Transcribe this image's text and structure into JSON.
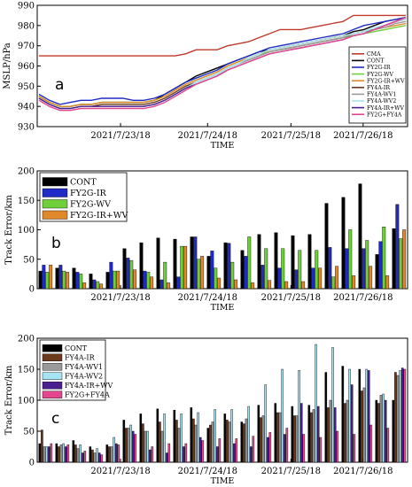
{
  "chart_data": [
    {
      "type": "line",
      "panel_label": "a",
      "title": "",
      "xlabel": "TIME",
      "ylabel": "MSLP/hPa",
      "ylim": [
        930,
        990
      ],
      "yticks": [
        930,
        940,
        950,
        960,
        970,
        980,
        990
      ],
      "xtick_labels": [
        "2021/7/23/18",
        "2021/7/24/18",
        "2021/7/25/18",
        "2021/7/26/18"
      ],
      "x": [
        0,
        1,
        2,
        3,
        4,
        5,
        6,
        7,
        8,
        9,
        10,
        11,
        12,
        13,
        14,
        15,
        16,
        17,
        18,
        19,
        20,
        21,
        22,
        23,
        24,
        25,
        26,
        27,
        28,
        29,
        30,
        31,
        32,
        33,
        34,
        35
      ],
      "legend_position": "right",
      "series": [
        {
          "name": "CMA",
          "color": "#c0392b",
          "values": [
            965,
            965,
            965,
            965,
            965,
            965,
            965,
            965,
            965,
            965,
            965,
            965,
            965,
            965,
            966,
            968,
            968,
            968,
            970,
            971,
            972,
            974,
            976,
            978,
            978,
            978,
            979,
            980,
            981,
            982,
            985,
            985,
            985,
            985,
            985,
            985
          ]
        },
        {
          "name": "CONT",
          "color": "#000000",
          "values": [
            945,
            942,
            940,
            940,
            941,
            941,
            942,
            942,
            942,
            942,
            942,
            943,
            946,
            949,
            952,
            955,
            957,
            959,
            961,
            963,
            965,
            967,
            968,
            969,
            970,
            971,
            972,
            973,
            974,
            975,
            977,
            978,
            980,
            982,
            983,
            984
          ]
        },
        {
          "name": "FY2G-IR",
          "color": "#1f2bc4",
          "values": [
            946,
            943,
            941,
            942,
            943,
            943,
            944,
            944,
            944,
            943,
            943,
            944,
            946,
            949,
            952,
            954,
            956,
            958,
            961,
            963,
            965,
            967,
            969,
            970,
            971,
            972,
            973,
            974,
            975,
            976,
            978,
            980,
            981,
            982,
            983,
            984
          ]
        },
        {
          "name": "FY2G-WV",
          "color": "#6fcf3a",
          "values": [
            945,
            942,
            940,
            940,
            941,
            941,
            942,
            942,
            942,
            942,
            942,
            943,
            945,
            948,
            951,
            953,
            955,
            957,
            960,
            962,
            964,
            966,
            967,
            968,
            969,
            970,
            971,
            972,
            973,
            974,
            975,
            976,
            977,
            978,
            979,
            980
          ]
        },
        {
          "name": "FY2G-IR+WV",
          "color": "#e0892a",
          "values": [
            945,
            942,
            940,
            940,
            941,
            941,
            942,
            942,
            942,
            942,
            942,
            943,
            945,
            948,
            951,
            953,
            955,
            957,
            960,
            962,
            964,
            966,
            968,
            969,
            970,
            971,
            972,
            973,
            974,
            975,
            976,
            977,
            978,
            979,
            980,
            981
          ]
        },
        {
          "name": "FY4A-IR",
          "color": "#6b3a1d",
          "values": [
            944,
            941,
            939,
            939,
            940,
            940,
            941,
            941,
            941,
            941,
            941,
            942,
            944,
            947,
            950,
            952,
            954,
            956,
            959,
            961,
            963,
            965,
            967,
            968,
            969,
            970,
            971,
            972,
            973,
            974,
            976,
            977,
            978,
            980,
            982,
            983
          ]
        },
        {
          "name": "FY4A-WV1",
          "color": "#9a9a9a",
          "values": [
            944,
            941,
            939,
            939,
            940,
            940,
            940,
            940,
            940,
            940,
            940,
            941,
            943,
            946,
            949,
            952,
            954,
            956,
            959,
            961,
            963,
            965,
            967,
            968,
            969,
            970,
            971,
            972,
            973,
            974,
            976,
            977,
            978,
            979,
            981,
            982
          ]
        },
        {
          "name": "FY4A-WV2",
          "color": "#a6e4f3",
          "values": [
            944,
            941,
            939,
            939,
            940,
            940,
            940,
            940,
            940,
            940,
            940,
            941,
            943,
            946,
            949,
            952,
            954,
            956,
            959,
            961,
            964,
            966,
            968,
            969,
            970,
            971,
            972,
            973,
            974,
            975,
            976,
            977,
            979,
            980,
            982,
            983
          ]
        },
        {
          "name": "FY4A-IR+WV",
          "color": "#4b1f8f",
          "values": [
            944,
            941,
            939,
            939,
            940,
            940,
            940,
            940,
            940,
            940,
            940,
            941,
            943,
            946,
            949,
            951,
            953,
            955,
            958,
            960,
            962,
            964,
            966,
            967,
            968,
            969,
            970,
            971,
            972,
            973,
            975,
            976,
            978,
            980,
            982,
            984
          ]
        },
        {
          "name": "FY2G+FY4A",
          "color": "#e3468f",
          "values": [
            943,
            940,
            938,
            938,
            939,
            939,
            939,
            939,
            939,
            939,
            939,
            940,
            942,
            945,
            948,
            951,
            953,
            955,
            958,
            960,
            962,
            964,
            966,
            967,
            968,
            969,
            970,
            971,
            972,
            973,
            975,
            976,
            978,
            980,
            982,
            984
          ]
        }
      ]
    },
    {
      "type": "bar",
      "panel_label": "b",
      "title": "",
      "xlabel": "TIME",
      "ylabel": "Track Error/km",
      "ylim": [
        0,
        200
      ],
      "yticks": [
        0,
        50,
        100,
        150,
        200
      ],
      "xtick_labels": [
        "2021/7/23/18",
        "2021/7/24/18",
        "2021/7/25/18",
        "2021/7/26/18"
      ],
      "categories": [
        0,
        1,
        2,
        3,
        4,
        5,
        6,
        7,
        8,
        9,
        10,
        11,
        12,
        13,
        14,
        15,
        16,
        17,
        18,
        19,
        20,
        21
      ],
      "legend_position": "top-left",
      "series": [
        {
          "name": "CONT",
          "color": "#000000",
          "values": [
            30,
            35,
            35,
            25,
            28,
            68,
            78,
            86,
            84,
            88,
            55,
            78,
            65,
            92,
            95,
            90,
            92,
            145,
            155,
            178,
            58,
            102
          ]
        },
        {
          "name": "FY2G-IR",
          "color": "#1f2bc4",
          "values": [
            40,
            40,
            28,
            15,
            45,
            52,
            30,
            15,
            20,
            88,
            64,
            77,
            55,
            40,
            35,
            32,
            35,
            70,
            68,
            68,
            80,
            143
          ]
        },
        {
          "name": "FY2G-WV",
          "color": "#6fcf3a",
          "values": [
            28,
            30,
            25,
            12,
            30,
            48,
            28,
            45,
            72,
            50,
            35,
            45,
            88,
            68,
            68,
            65,
            65,
            20,
            100,
            82,
            105,
            85
          ]
        },
        {
          "name": "FY2G-IR+WV",
          "color": "#e0892a",
          "values": [
            40,
            28,
            10,
            8,
            30,
            32,
            20,
            10,
            72,
            55,
            18,
            15,
            10,
            14,
            12,
            12,
            35,
            38,
            22,
            38,
            22,
            100
          ]
        }
      ]
    },
    {
      "type": "bar",
      "panel_label": "c",
      "title": "",
      "xlabel": "TIME",
      "ylabel": "Track Error/km",
      "ylim": [
        0,
        200
      ],
      "yticks": [
        0,
        50,
        100,
        150,
        200
      ],
      "xtick_labels": [
        "2021/7/23/18",
        "2021/7/24/18",
        "2021/7/25/18",
        "2021/7/26/18"
      ],
      "categories": [
        0,
        1,
        2,
        3,
        4,
        5,
        6,
        7,
        8,
        9,
        10,
        11,
        12,
        13,
        14,
        15,
        16,
        17,
        18,
        19,
        20,
        21
      ],
      "legend_position": "top-left",
      "series": [
        {
          "name": "CONT",
          "color": "#000000",
          "values": [
            30,
            30,
            35,
            25,
            28,
            68,
            78,
            86,
            84,
            88,
            55,
            78,
            65,
            92,
            95,
            90,
            92,
            145,
            155,
            150,
            100,
            100
          ]
        },
        {
          "name": "FY4A-IR",
          "color": "#6b3a1d",
          "values": [
            52,
            25,
            28,
            20,
            25,
            55,
            62,
            65,
            68,
            70,
            60,
            68,
            62,
            72,
            80,
            75,
            80,
            88,
            95,
            115,
            95,
            145
          ]
        },
        {
          "name": "FY4A-WV1",
          "color": "#9a9a9a",
          "values": [
            25,
            28,
            22,
            15,
            25,
            55,
            50,
            50,
            55,
            60,
            65,
            65,
            70,
            75,
            80,
            75,
            85,
            100,
            100,
            120,
            108,
            140
          ]
        },
        {
          "name": "FY4A-WV2",
          "color": "#a6e4f3",
          "values": [
            25,
            30,
            28,
            22,
            40,
            60,
            50,
            78,
            78,
            80,
            85,
            85,
            90,
            125,
            150,
            148,
            190,
            185,
            150,
            150,
            110,
            148
          ]
        },
        {
          "name": "FY4A-IR+WV",
          "color": "#4b1f8f",
          "values": [
            25,
            25,
            15,
            15,
            30,
            50,
            20,
            15,
            25,
            40,
            25,
            30,
            25,
            40,
            45,
            95,
            90,
            88,
            125,
            148,
            100,
            152
          ]
        },
        {
          "name": "FY2G+FY4A",
          "color": "#e3468f",
          "values": [
            30,
            28,
            18,
            12,
            28,
            45,
            25,
            30,
            30,
            35,
            38,
            38,
            42,
            48,
            55,
            45,
            40,
            50,
            45,
            60,
            55,
            150
          ]
        }
      ]
    }
  ]
}
